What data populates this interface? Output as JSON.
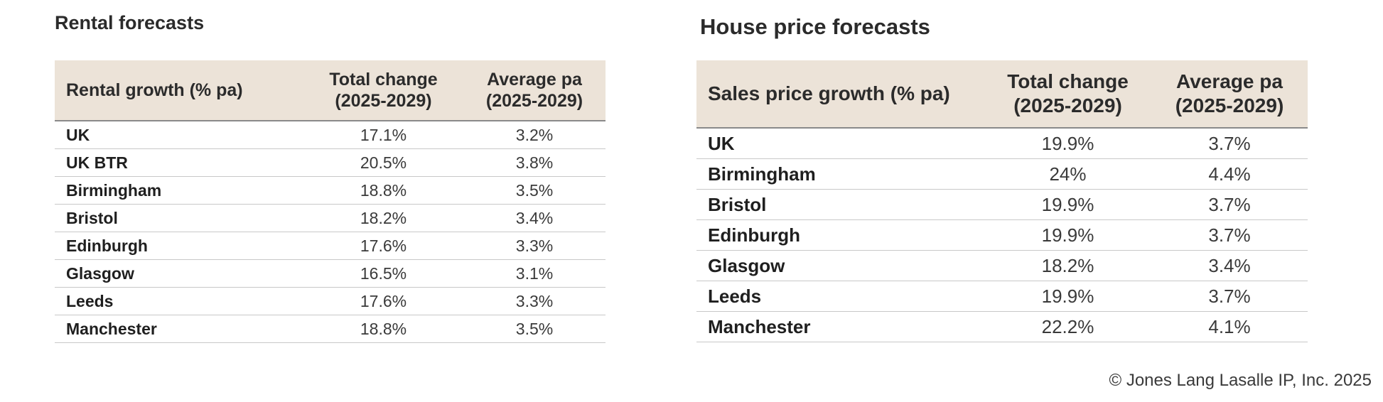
{
  "rental": {
    "title": "Rental forecasts",
    "headers": {
      "label": "Rental growth (% pa)",
      "total_line1": "Total change",
      "total_line2": "(2025-2029)",
      "avg_line1": "Average pa",
      "avg_line2": "(2025-2029)"
    },
    "rows": [
      {
        "name": "UK",
        "total": "17.1%",
        "avg": "3.2%"
      },
      {
        "name": "UK BTR",
        "total": "20.5%",
        "avg": "3.8%"
      },
      {
        "name": "Birmingham",
        "total": "18.8%",
        "avg": "3.5%"
      },
      {
        "name": "Bristol",
        "total": "18.2%",
        "avg": "3.4%"
      },
      {
        "name": "Edinburgh",
        "total": "17.6%",
        "avg": "3.3%"
      },
      {
        "name": "Glasgow",
        "total": "16.5%",
        "avg": "3.1%"
      },
      {
        "name": "Leeds",
        "total": "17.6%",
        "avg": "3.3%"
      },
      {
        "name": "Manchester",
        "total": "18.8%",
        "avg": "3.5%"
      }
    ]
  },
  "house": {
    "title": "House price forecasts",
    "headers": {
      "label": "Sales price growth (% pa)",
      "total_line1": "Total change",
      "total_line2": "(2025-2029)",
      "avg_line1": "Average pa",
      "avg_line2": "(2025-2029)"
    },
    "rows": [
      {
        "name": "UK",
        "total": "19.9%",
        "avg": "3.7%"
      },
      {
        "name": "Birmingham",
        "total": "24%",
        "avg": "4.4%"
      },
      {
        "name": "Bristol",
        "total": "19.9%",
        "avg": "3.7%"
      },
      {
        "name": "Edinburgh",
        "total": "19.9%",
        "avg": "3.7%"
      },
      {
        "name": "Glasgow",
        "total": "18.2%",
        "avg": "3.4%"
      },
      {
        "name": "Leeds",
        "total": "19.9%",
        "avg": "3.7%"
      },
      {
        "name": "Manchester",
        "total": "22.2%",
        "avg": "4.1%"
      }
    ]
  },
  "footer": {
    "copyright": "© Jones Lang Lasalle IP, Inc. 2025"
  },
  "colors": {
    "header_bg": "#ece3d8",
    "row_border": "#c8c8c8"
  }
}
